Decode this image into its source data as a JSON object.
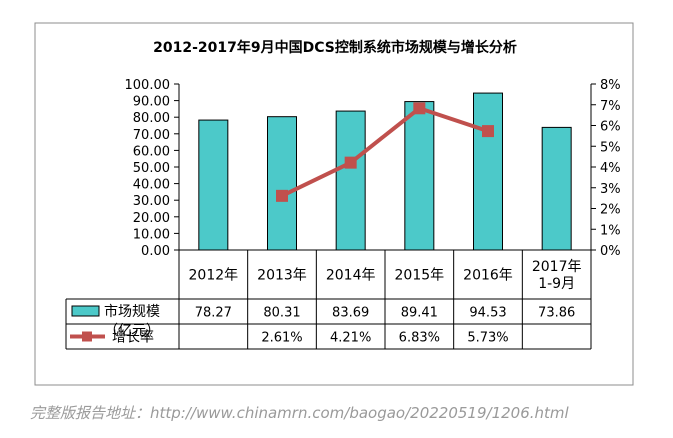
{
  "chart_data": {
    "type": "bar",
    "title": "2012-2017年9月中国DCS控制系统市场规模与增长分析",
    "categories": [
      "2012年",
      "2013年",
      "2014年",
      "2015年",
      "2016年",
      "2017年\n1-9月"
    ],
    "y_left": {
      "min": 0,
      "max": 100,
      "step": 10,
      "tick_labels": [
        "0.00",
        "10.00",
        "20.00",
        "30.00",
        "40.00",
        "50.00",
        "60.00",
        "70.00",
        "80.00",
        "90.00",
        "100.00"
      ]
    },
    "y_right": {
      "min": 0,
      "max": 8,
      "step": 1,
      "tick_labels": [
        "0%",
        "1%",
        "2%",
        "3%",
        "4%",
        "5%",
        "6%",
        "7%",
        "8%"
      ]
    },
    "grid": false,
    "legend_placement": "data-table-left",
    "series": [
      {
        "name": "市场规模",
        "name_line2": "（亿元）",
        "type": "bar",
        "axis": "left",
        "color": "#4cc9c9",
        "values": [
          78.27,
          80.31,
          83.69,
          89.41,
          94.53,
          73.86
        ],
        "labels": [
          "78.27",
          "80.31",
          "83.69",
          "89.41",
          "94.53",
          "73.86"
        ]
      },
      {
        "name": "增长率",
        "type": "line",
        "axis": "right",
        "color": "#c0504d",
        "values": [
          null,
          2.61,
          4.21,
          6.83,
          5.73,
          null
        ],
        "labels": [
          "",
          "2.61%",
          "4.21%",
          "6.83%",
          "5.73%",
          ""
        ]
      }
    ]
  },
  "caption": "完整版报告地址：http://www.chinamrn.com/baogao/20220519/1206.html"
}
